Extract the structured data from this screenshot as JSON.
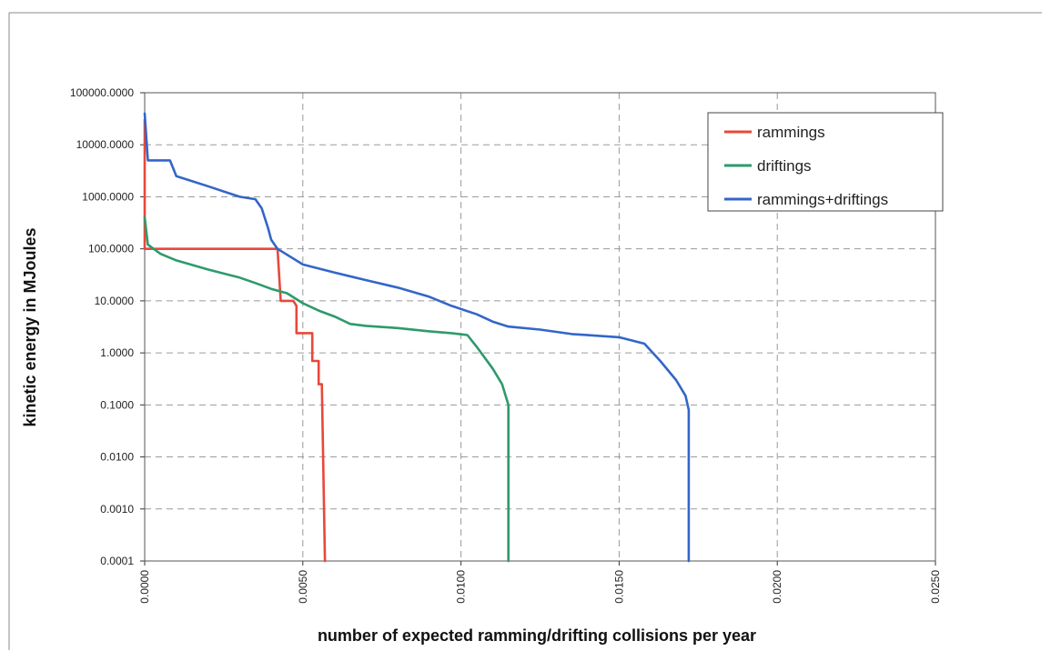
{
  "chart_data": {
    "type": "line",
    "title": "",
    "xlabel": "number of expected ramming/drifting collisions per year",
    "ylabel": "kinetic energy in MJoules",
    "x_scale": "linear",
    "y_scale": "log",
    "xlim": [
      0.0,
      0.025
    ],
    "ylim": [
      0.0001,
      100000
    ],
    "x_ticks": [
      "0.0000",
      "0.0050",
      "0.0100",
      "0.0150",
      "0.0200",
      "0.0250"
    ],
    "y_ticks": [
      "100000.0000",
      "10000.0000",
      "1000.0000",
      "100.0000",
      "10.0000",
      "1.0000",
      "0.1000",
      "0.0100",
      "0.0010",
      "0.0001"
    ],
    "grid": true,
    "legend_position": "top-right",
    "series": [
      {
        "name": "rammings",
        "color": "#e8483a",
        "points": [
          [
            0.0,
            30000
          ],
          [
            0.0,
            100
          ],
          [
            0.0042,
            100
          ],
          [
            0.0043,
            10
          ],
          [
            0.0047,
            10
          ],
          [
            0.0048,
            8
          ],
          [
            0.0048,
            2.4
          ],
          [
            0.0053,
            2.4
          ],
          [
            0.0053,
            0.7
          ],
          [
            0.0055,
            0.7
          ],
          [
            0.0055,
            0.25
          ],
          [
            0.0056,
            0.25
          ],
          [
            0.0057,
            0.0001
          ]
        ]
      },
      {
        "name": "driftings",
        "color": "#2e9a6c",
        "points": [
          [
            0.0,
            400
          ],
          [
            0.0001,
            120
          ],
          [
            0.0005,
            80
          ],
          [
            0.001,
            60
          ],
          [
            0.002,
            40
          ],
          [
            0.003,
            28
          ],
          [
            0.0035,
            22
          ],
          [
            0.004,
            17
          ],
          [
            0.0045,
            14
          ],
          [
            0.005,
            9
          ],
          [
            0.0055,
            6.5
          ],
          [
            0.006,
            5
          ],
          [
            0.0065,
            3.6
          ],
          [
            0.007,
            3.3
          ],
          [
            0.008,
            3
          ],
          [
            0.009,
            2.6
          ],
          [
            0.0097,
            2.4
          ],
          [
            0.0102,
            2.2
          ],
          [
            0.0105,
            1.3
          ],
          [
            0.011,
            0.5
          ],
          [
            0.0113,
            0.25
          ],
          [
            0.0115,
            0.1
          ],
          [
            0.0115,
            0.0001
          ]
        ]
      },
      {
        "name": "rammings+driftings",
        "color": "#3366c8",
        "points": [
          [
            0.0,
            40000
          ],
          [
            0.0001,
            5000
          ],
          [
            0.0008,
            5000
          ],
          [
            0.001,
            2500
          ],
          [
            0.0015,
            2000
          ],
          [
            0.002,
            1600
          ],
          [
            0.003,
            1000
          ],
          [
            0.0035,
            900
          ],
          [
            0.0037,
            600
          ],
          [
            0.0039,
            250
          ],
          [
            0.004,
            150
          ],
          [
            0.0042,
            100
          ],
          [
            0.005,
            50
          ],
          [
            0.006,
            35
          ],
          [
            0.007,
            25
          ],
          [
            0.008,
            18
          ],
          [
            0.009,
            12
          ],
          [
            0.0097,
            8
          ],
          [
            0.0105,
            5.5
          ],
          [
            0.011,
            4
          ],
          [
            0.0115,
            3.2
          ],
          [
            0.0125,
            2.8
          ],
          [
            0.0135,
            2.3
          ],
          [
            0.015,
            2
          ],
          [
            0.0158,
            1.5
          ],
          [
            0.0163,
            0.7
          ],
          [
            0.0168,
            0.3
          ],
          [
            0.0171,
            0.15
          ],
          [
            0.0172,
            0.08
          ],
          [
            0.0172,
            0.0001
          ]
        ]
      }
    ]
  }
}
